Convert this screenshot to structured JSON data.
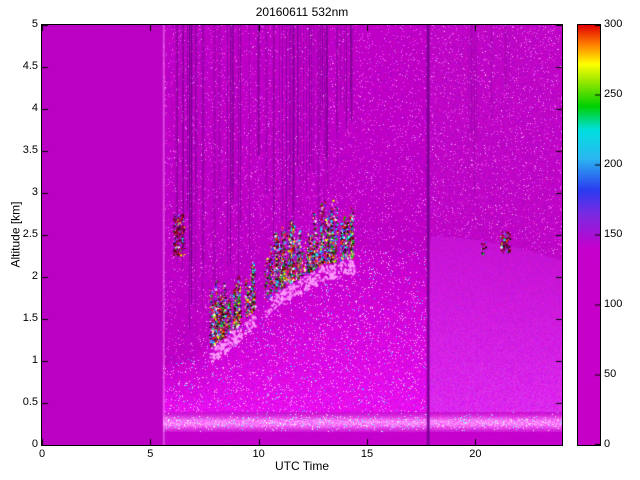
{
  "figure": {
    "title": "20160611 532nm",
    "xlabel": "UTC Time",
    "ylabel": "Altitude [km]"
  },
  "chart_data": {
    "type": "heatmap",
    "title": "20160611 532nm",
    "xlabel": "UTC Time",
    "ylabel": "Altitude [km]",
    "x_range": [
      0,
      24
    ],
    "y_range": [
      0,
      5
    ],
    "x_ticks": [
      0,
      5,
      10,
      15,
      20
    ],
    "y_ticks": [
      0,
      0.5,
      1,
      1.5,
      2,
      2.5,
      3,
      3.5,
      4,
      4.5,
      5
    ],
    "grid": false,
    "legend": "colorbar-right",
    "colorbar": {
      "range": [
        0,
        300
      ],
      "ticks": [
        0,
        50,
        100,
        150,
        200,
        250,
        300
      ],
      "colormap": [
        {
          "v": 0,
          "c": "#C600C6"
        },
        {
          "v": 140,
          "c": "#C600CC"
        },
        {
          "v": 165,
          "c": "#7A2BE2"
        },
        {
          "v": 182,
          "c": "#2B3BF0"
        },
        {
          "v": 205,
          "c": "#2BB8F0"
        },
        {
          "v": 225,
          "c": "#00E0E0"
        },
        {
          "v": 242,
          "c": "#00D000"
        },
        {
          "v": 260,
          "c": "#9BE800"
        },
        {
          "v": 272,
          "c": "#FFFF00"
        },
        {
          "v": 286,
          "c": "#FF8000"
        },
        {
          "v": 300,
          "c": "#E00000"
        }
      ]
    },
    "features": {
      "no_data_before_utc": 5.55,
      "data_start_bright_column_utc": 5.62,
      "gap_line_utc": 17.8,
      "surface_band_alt_km": [
        0.16,
        0.4
      ],
      "boundary_top_km": [
        {
          "t": 5.6,
          "alt": 0.95
        },
        {
          "t": 7,
          "alt": 1.05
        },
        {
          "t": 8,
          "alt": 1.3
        },
        {
          "t": 9,
          "alt": 1.5
        },
        {
          "t": 10,
          "alt": 1.75
        },
        {
          "t": 11,
          "alt": 1.95
        },
        {
          "t": 12,
          "alt": 2.1
        },
        {
          "t": 13,
          "alt": 2.25
        },
        {
          "t": 14,
          "alt": 2.3
        },
        {
          "t": 15,
          "alt": 2.35
        },
        {
          "t": 16,
          "alt": 2.3
        },
        {
          "t": 17.5,
          "alt": 2.3
        },
        {
          "t": 18,
          "alt": 2.5
        },
        {
          "t": 20,
          "alt": 2.45
        },
        {
          "t": 22,
          "alt": 2.35
        },
        {
          "t": 24,
          "alt": 2.2
        }
      ],
      "dark_streaks": [
        {
          "t0": 6.2,
          "t1": 14.3,
          "count": 55,
          "alpha": 0.4
        },
        {
          "t0": 19.2,
          "t1": 22.8,
          "count": 7,
          "alpha": 0.22
        }
      ],
      "cloud_boxes": [
        {
          "t0": 6.05,
          "t1": 6.55,
          "alt0": 2.25,
          "alt1": 2.75,
          "count": 170
        },
        {
          "t0": 20.25,
          "t1": 20.45,
          "alt0": 2.28,
          "alt1": 2.42,
          "count": 14
        },
        {
          "t0": 21.15,
          "t1": 21.6,
          "alt0": 2.3,
          "alt1": 2.55,
          "count": 70
        }
      ],
      "boundary_clouds": {
        "t0": 7.7,
        "t1": 14.35,
        "count": 90
      },
      "speckle_colors": [
        "#200000",
        "#5A0000",
        "#A00000",
        "#FF3000",
        "#FFFF00",
        "#00C000",
        "#00FFFF",
        "#3050FF",
        "#FFFFFF",
        "#151515"
      ]
    }
  }
}
